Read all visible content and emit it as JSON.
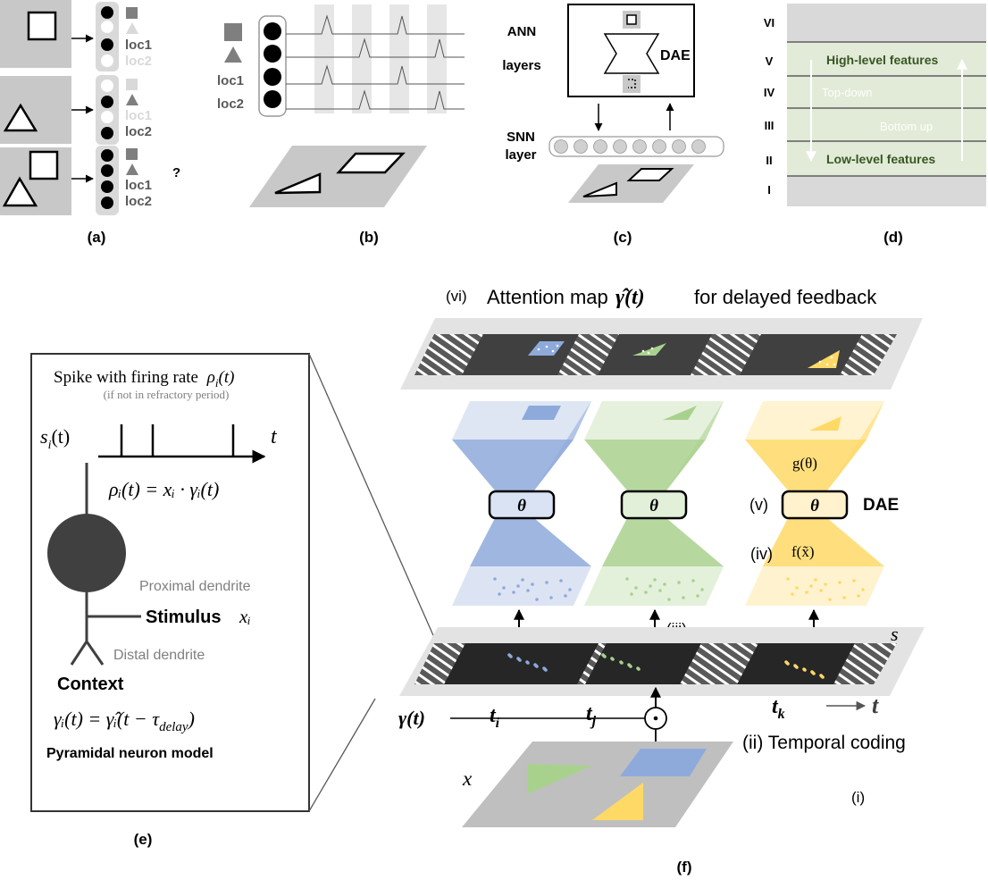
{
  "panel_a": {
    "caption": "(a)",
    "rows": [
      {
        "labels": [
          "loc1",
          "loc2"
        ]
      },
      {
        "labels": [
          "loc1",
          "loc2"
        ]
      },
      {
        "labels": [
          "loc1",
          "loc2"
        ],
        "question": "?"
      }
    ]
  },
  "panel_b": {
    "caption": "(b)",
    "neuron_labels": [
      "loc1",
      "loc2"
    ]
  },
  "panel_c": {
    "caption": "(c)",
    "ann_label_1": "ANN",
    "ann_label_2": "layers",
    "dae_label": "DAE",
    "snn_label_1": "SNN",
    "snn_label_2": "layer"
  },
  "panel_d": {
    "caption": "(d)",
    "layers": [
      "VI",
      "V",
      "IV",
      "III",
      "II",
      "I"
    ],
    "high_level": "High-level features",
    "low_level": "Low-level features",
    "top_down": "Top-down",
    "bottom_up": "Bottom up"
  },
  "panel_e": {
    "caption": "(e)",
    "firing_title": "Spike with firing rate",
    "firing_rho": "ρ",
    "firing_i": "i",
    "firing_t": "(t)",
    "refractory": "(if not in refractory period)",
    "s_label": "s",
    "s_sub": "i",
    "s_t": "(t)",
    "t_axis": "t",
    "rate_eq": "ρᵢ(t) =  xᵢ · γᵢ(t)",
    "proximal": "Proximal dendrite",
    "stimulus": "Stimulus",
    "stimulus_var": "xᵢ",
    "distal": "Distal dendrite",
    "context": "Context",
    "context_eq": "γᵢ(t) = γ̂ᵢ(t − τ",
    "context_eq_sub": "delay",
    "context_eq_end": ")",
    "model_name": "Pyramidal neuron model"
  },
  "panel_f": {
    "caption": "(f)",
    "attention_label": "(vi)",
    "attention_text": "Attention map",
    "attention_sym": "γ̂(t)",
    "attention_rest": "for delayed feedback",
    "theta": "θ",
    "g_label": "g(θ)",
    "f_label": "f(x̃)",
    "v_label": "(v)",
    "iv_label": "(iv)",
    "dae_label": "DAE",
    "iii_label": "(iii)",
    "s_label": "s",
    "t_i": "t",
    "t_i_sub": "i",
    "t_j": "t",
    "t_j_sub": "j",
    "t_k": "t",
    "t_k_sub": "k",
    "t_axis": "t",
    "gamma_label": "γ(t)",
    "temporal_coding": "(ii) Temporal coding",
    "x_label": "x",
    "i_label": "(i)",
    "dae_colors": [
      "#8eaadb",
      "#a9d18e",
      "#ffd966"
    ],
    "dae_light_colors": [
      "#dae3f3",
      "#e2f0d9",
      "#fff2cc"
    ]
  }
}
